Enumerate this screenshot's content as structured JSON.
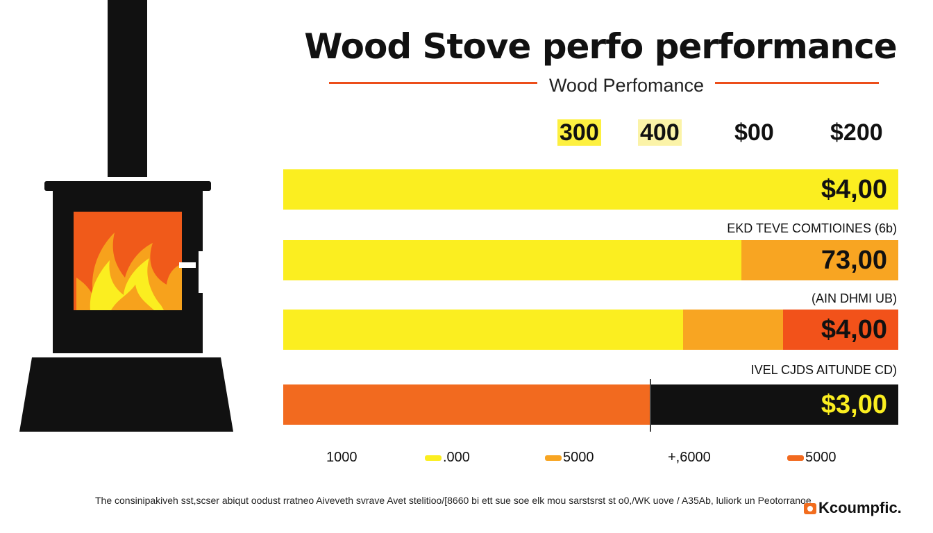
{
  "header": {
    "title": "Wood Stove perfo performance",
    "subtitle": "Wood Perfomance"
  },
  "colors": {
    "yellow": "#fbee20",
    "light_orange": "#f8a522",
    "orange": "#f26a1f",
    "dark_orange": "#f2521a",
    "black": "#111111",
    "accent_line": "#ec4e1a"
  },
  "chart_data": {
    "type": "bar",
    "orientation": "horizontal",
    "stacked": true,
    "title": "Wood Stove perfo performance",
    "subtitle": "Wood Perfomance",
    "column_headers": [
      "300",
      "400",
      "$00",
      "$200"
    ],
    "rows": [
      {
        "caption": "",
        "value_label": "$4,00",
        "segments": [
          {
            "color": "#fbee20",
            "share": 1.0
          }
        ]
      },
      {
        "caption": "EKD TEVE COMTIOINES (6b)",
        "value_label": "73,00",
        "segments": [
          {
            "color": "#fbee20",
            "share": 0.745
          },
          {
            "color": "#f8a522",
            "share": 0.255
          }
        ]
      },
      {
        "caption": "(AIN DHMI UB)",
        "value_label": "$4,00",
        "segments": [
          {
            "color": "#fbee20",
            "share": 0.65
          },
          {
            "color": "#f8a522",
            "share": 0.163
          },
          {
            "color": "#f2521a",
            "share": 0.187
          }
        ]
      },
      {
        "caption": "IVEL CJDS AITUNDE CD)",
        "value_label": "$3,00",
        "segments": [
          {
            "color": "#f26a1f",
            "share": 0.597
          },
          {
            "color": "#111111",
            "share": 0.403
          }
        ]
      }
    ],
    "legend": [
      {
        "label": "1000",
        "color": ""
      },
      {
        "label": ".000",
        "color": "#fbee20"
      },
      {
        "label": "5000",
        "color": "#f8a522"
      },
      {
        "label": "+,6000",
        "color": ""
      },
      {
        "label": "5000",
        "color": "#f26a1f"
      }
    ],
    "legend_position": "bottom",
    "grid": false
  },
  "footer": {
    "footnote": "The consinipakiveh sst,scser abiqut oodust rratneo Aiveveth svrave Avet stelitioo/[8660 bi ett sue soe elk mou sarstsrst st o0,/WK uove / A35Ab, luliork un Peotorranoe",
    "brand": "Kcoumpfic."
  }
}
